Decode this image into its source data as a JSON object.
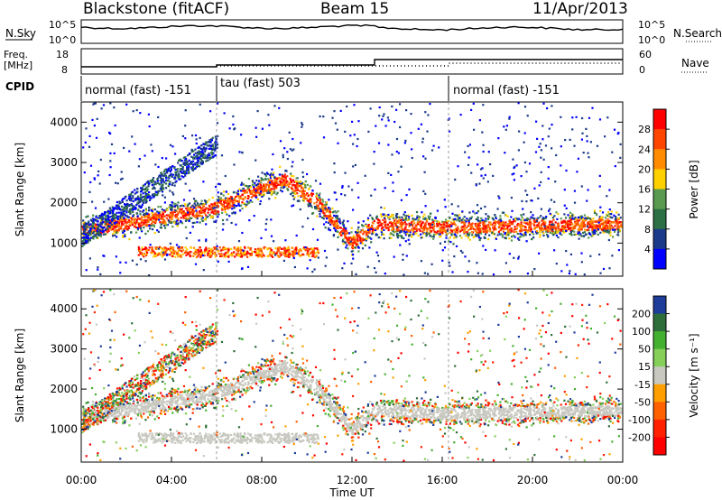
{
  "header": {
    "station": "Blackstone (fitACF)",
    "beam": "Beam 15",
    "date": "11/Apr/2013"
  },
  "sky_panel": {
    "left_label": "N.Sky",
    "right_label": "N.Search",
    "left_ticks": [
      "10^5",
      "10^0"
    ],
    "right_ticks": [
      "10^5",
      "10^0"
    ]
  },
  "freq_panel": {
    "left_label_line1": "Freq.",
    "left_label_line2": "[MHz]",
    "right_label": "Nave",
    "left_ticks": [
      "18",
      "8"
    ],
    "right_ticks": [
      "60",
      "0"
    ]
  },
  "cpid": {
    "label": "CPID",
    "modes": [
      "normal (fast) -151",
      "tau (fast) 503",
      "normal (fast) -151"
    ]
  },
  "time_axis": {
    "title": "Time UT",
    "ticks": [
      "00:00",
      "04:00",
      "08:00",
      "12:00",
      "16:00",
      "20:00",
      "00:00"
    ]
  },
  "power_panel": {
    "ylabel": "Slant Range [km]",
    "yticks": [
      "1000",
      "2000",
      "3000",
      "4000"
    ],
    "colorbar_label": "Power [dB]",
    "colorbar_ticks": [
      "28",
      "24",
      "20",
      "16",
      "12",
      "8",
      "4"
    ],
    "colors": [
      "#ff0000",
      "#ff4500",
      "#ff8c00",
      "#ffd000",
      "#5a9a50",
      "#2d7045",
      "#1b3a8a",
      "#0000ff"
    ]
  },
  "velocity_panel": {
    "ylabel": "Slant Range [km]",
    "yticks": [
      "1000",
      "2000",
      "3000",
      "4000"
    ],
    "colorbar_label": "Velocity [m s⁻¹]",
    "colorbar_ticks": [
      "200",
      "100",
      "50",
      "15",
      "-15",
      "-50",
      "-100",
      "-200"
    ],
    "colors": [
      "#1e3c9a",
      "#2e6e3a",
      "#44b030",
      "#86d05a",
      "#c8c8c0",
      "#ff9f00",
      "#ff6000",
      "#ff2000",
      "#ff0000"
    ]
  },
  "chart_data": {
    "type": "heatmap",
    "x_range_hours": [
      0,
      24
    ],
    "range_km": [
      180,
      4500
    ],
    "power_range_db": [
      0,
      30
    ],
    "velocity_range_ms": [
      -250,
      250
    ],
    "mode_change_times_hours": [
      6,
      16.3
    ],
    "frequency_steps_mhz": [
      {
        "from": 0,
        "to": 6,
        "value": 10
      },
      {
        "from": 6,
        "to": 13,
        "value": 11
      },
      {
        "from": 13,
        "to": 24,
        "value": 14
      }
    ],
    "main_echo_band": [
      {
        "t": 0,
        "range_km": 1350
      },
      {
        "t": 2,
        "range_km": 1500
      },
      {
        "t": 4,
        "range_km": 1700
      },
      {
        "t": 6,
        "range_km": 1900
      },
      {
        "t": 8,
        "range_km": 2400
      },
      {
        "t": 9,
        "range_km": 2600
      },
      {
        "t": 10.5,
        "range_km": 2000
      },
      {
        "t": 12,
        "range_km": 1000
      },
      {
        "t": 13,
        "range_km": 1500
      },
      {
        "t": 16,
        "range_km": 1400
      },
      {
        "t": 24,
        "range_km": 1500
      }
    ]
  }
}
